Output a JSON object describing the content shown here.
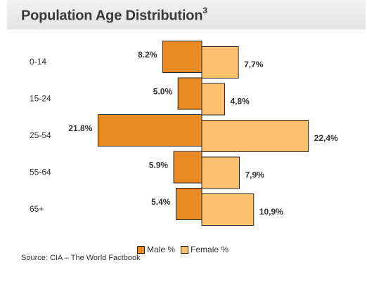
{
  "chart_data": {
    "type": "bar",
    "orientation": "horizontal",
    "title": "Population Age Distribution",
    "title_superscript": "3",
    "categories": [
      "0-14",
      "15-24",
      "25-54",
      "55-64",
      "65+"
    ],
    "series": [
      {
        "name": "Male %",
        "values": [
          8.2,
          5.0,
          21.8,
          5.9,
          5.4
        ],
        "labels": [
          "8.2%",
          "5.0%",
          "21.8%",
          "5.9%",
          "5.4%"
        ],
        "color": "#e98a22"
      },
      {
        "name": "Female %",
        "values": [
          7.7,
          4.8,
          22.4,
          7.9,
          10.9
        ],
        "labels": [
          "7,7%",
          "4,8%",
          "22,4%",
          "7,9%",
          "10,9%"
        ],
        "color": "#fcc06e"
      }
    ],
    "legend_position": "bottom",
    "grid": false
  },
  "source": "Source: CIA – The World Factbook"
}
